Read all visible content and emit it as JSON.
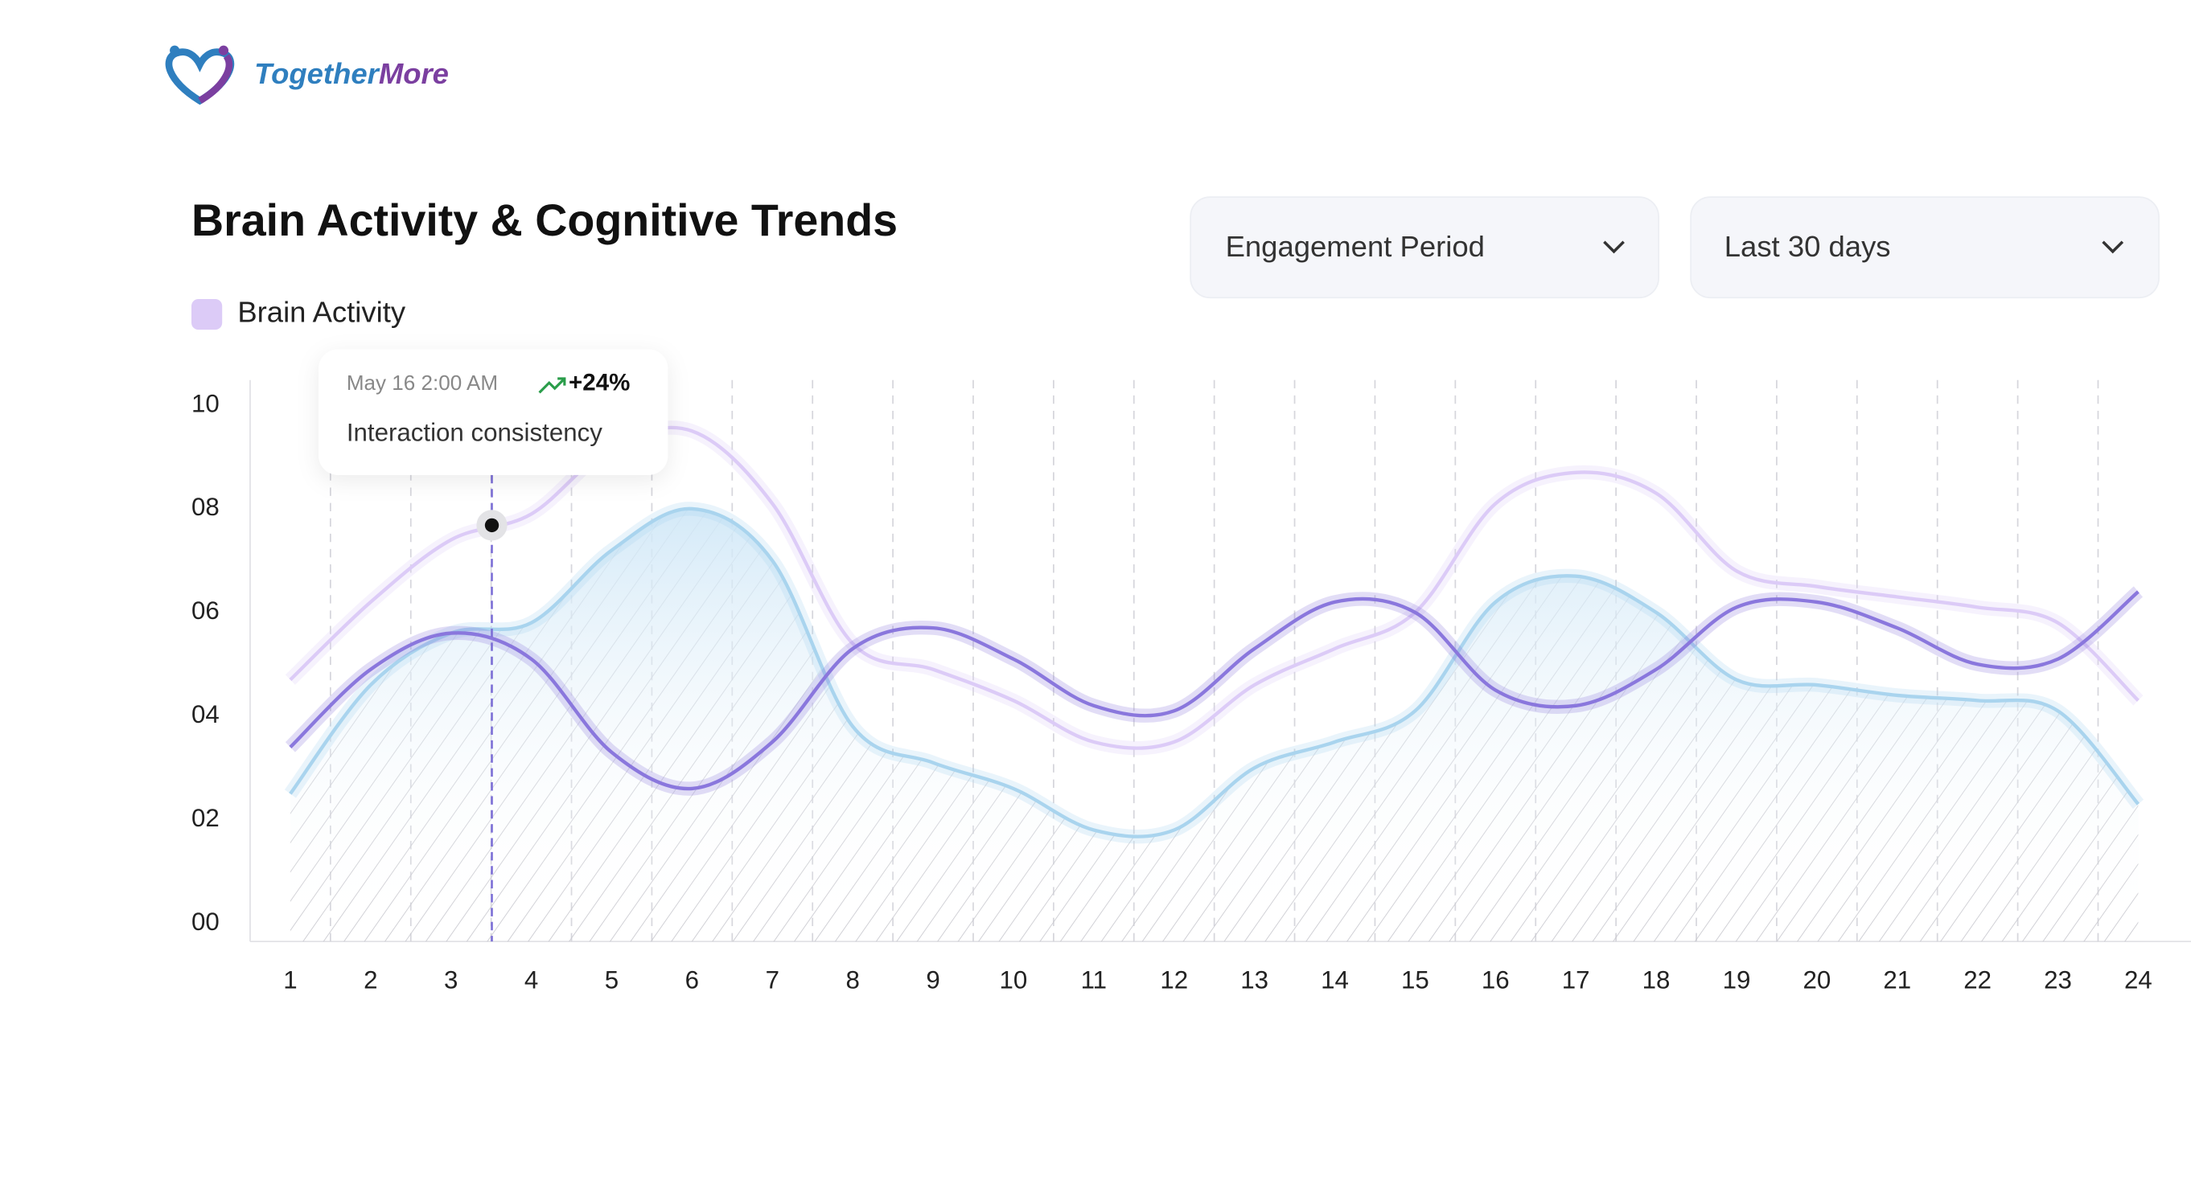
{
  "logo": {
    "first": "Together",
    "second": "More"
  },
  "filters": [
    "Engagement Period",
    "Last 30 days"
  ],
  "tooltip": {
    "date": "May 16 2:00 AM",
    "change": "+24%",
    "label": "Interaction consistency"
  },
  "chart_data": {
    "type": "line",
    "title": "Brain Activity & Cognitive Trends",
    "categories": [
      "1",
      "2",
      "3",
      "4",
      "5",
      "6",
      "7",
      "8",
      "9",
      "10",
      "11",
      "12",
      "13",
      "14",
      "15",
      "16",
      "17",
      "18",
      "19",
      "20",
      "21",
      "22",
      "23",
      "24"
    ],
    "series": [
      {
        "name": "Brain Activity",
        "color": "#dccbf7",
        "values": [
          4.7,
          6.2,
          7.4,
          7.9,
          9.2,
          9.5,
          8.1,
          5.4,
          4.9,
          4.3,
          3.5,
          3.5,
          4.6,
          5.3,
          6.0,
          8.1,
          8.7,
          8.3,
          6.8,
          6.5,
          6.3,
          6.1,
          5.8,
          4.3
        ]
      },
      {
        "color": "#8a77dd",
        "values": [
          3.4,
          4.9,
          5.6,
          5.1,
          3.3,
          2.6,
          3.5,
          5.3,
          5.7,
          5.1,
          4.2,
          4.1,
          5.3,
          6.2,
          6.0,
          4.5,
          4.2,
          4.9,
          6.1,
          6.2,
          5.7,
          5.0,
          5.1,
          6.4
        ]
      },
      {
        "color": "#a9d4ee",
        "area": true,
        "values": [
          2.5,
          4.6,
          5.6,
          5.8,
          7.2,
          8.0,
          7.0,
          3.8,
          3.1,
          2.6,
          1.8,
          1.8,
          3.0,
          3.5,
          4.1,
          6.2,
          6.7,
          6.0,
          4.7,
          4.6,
          4.4,
          4.3,
          4.1,
          2.3
        ]
      }
    ],
    "ylim": [
      0,
      10
    ],
    "yticks": [
      {
        "value": 0,
        "label": "00"
      },
      {
        "value": 2,
        "label": "02"
      },
      {
        "value": 4,
        "label": "04"
      },
      {
        "value": 6,
        "label": "06"
      },
      {
        "value": 8,
        "label": "08"
      },
      {
        "value": 10,
        "label": "10"
      }
    ]
  }
}
